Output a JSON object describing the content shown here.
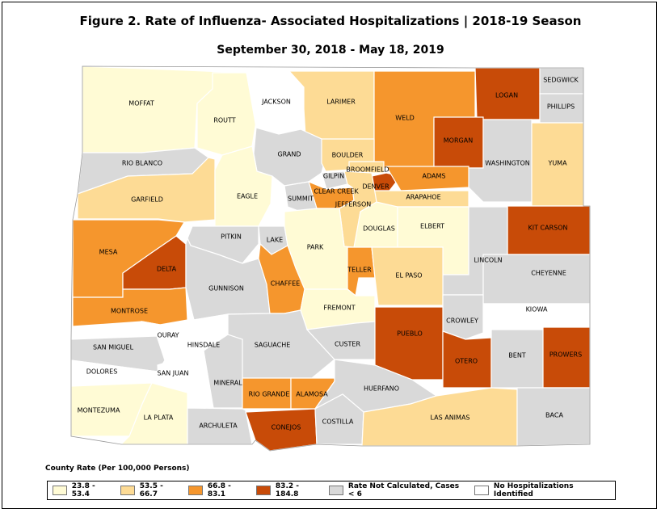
{
  "figure": {
    "title": "Figure 2. Rate of Influenza- Associated Hospitalizations | 2018-19 Season",
    "subtitle": "September 30, 2018 - May 18, 2019"
  },
  "colors": {
    "cat1": "#fffbd5",
    "cat2": "#fddb95",
    "cat3": "#f5962d",
    "cat4": "#c84b08",
    "cat5": "#d9d9d9",
    "cat6": "#ffffff"
  },
  "legend": {
    "title": "County Rate (Per 100,000 Persons)",
    "items": [
      {
        "label": "23.8 - 53.4",
        "color": "#fffbd5"
      },
      {
        "label": "53.5 - 66.7",
        "color": "#fddb95"
      },
      {
        "label": "66.8 - 83.1",
        "color": "#f5962d"
      },
      {
        "label": "83.2 - 184.8",
        "color": "#c84b08"
      },
      {
        "label": "Rate Not Calculated, Cases < 6",
        "color": "#d9d9d9"
      },
      {
        "label": "No Hospitalizations Identified",
        "color": "#ffffff"
      }
    ]
  },
  "counties": [
    {
      "name": "MOFFAT",
      "category": 1
    },
    {
      "name": "ROUTT",
      "category": 1
    },
    {
      "name": "JACKSON",
      "category": 6
    },
    {
      "name": "LARIMER",
      "category": 2
    },
    {
      "name": "WELD",
      "category": 3
    },
    {
      "name": "LOGAN",
      "category": 4
    },
    {
      "name": "SEDGWICK",
      "category": 5
    },
    {
      "name": "PHILLIPS",
      "category": 5
    },
    {
      "name": "RIO BLANCO",
      "category": 5
    },
    {
      "name": "GRAND",
      "category": 5
    },
    {
      "name": "BOULDER",
      "category": 2
    },
    {
      "name": "MORGAN",
      "category": 4
    },
    {
      "name": "WASHINGTON",
      "category": 5
    },
    {
      "name": "YUMA",
      "category": 2
    },
    {
      "name": "GARFIELD",
      "category": 2
    },
    {
      "name": "EAGLE",
      "category": 1
    },
    {
      "name": "GILPIN",
      "category": 5
    },
    {
      "name": "CLEAR CREEK",
      "category": 3
    },
    {
      "name": "BROOMFIELD",
      "category": 2
    },
    {
      "name": "DENVER",
      "category": 4
    },
    {
      "name": "ADAMS",
      "category": 3
    },
    {
      "name": "ARAPAHOE",
      "category": 2
    },
    {
      "name": "JEFFERSON",
      "category": 2
    },
    {
      "name": "SUMMIT",
      "category": 5
    },
    {
      "name": "DOUGLAS",
      "category": 1
    },
    {
      "name": "ELBERT",
      "category": 1
    },
    {
      "name": "KIT CARSON",
      "category": 4
    },
    {
      "name": "MESA",
      "category": 3
    },
    {
      "name": "PITKIN",
      "category": 5
    },
    {
      "name": "LAKE",
      "category": 5
    },
    {
      "name": "PARK",
      "category": 1
    },
    {
      "name": "LINCOLN",
      "category": 5
    },
    {
      "name": "DELTA",
      "category": 4
    },
    {
      "name": "TELLER",
      "category": 3
    },
    {
      "name": "EL PASO",
      "category": 2
    },
    {
      "name": "CHEYENNE",
      "category": 5
    },
    {
      "name": "GUNNISON",
      "category": 5
    },
    {
      "name": "CHAFFEE",
      "category": 3
    },
    {
      "name": "MONTROSE",
      "category": 3
    },
    {
      "name": "FREMONT",
      "category": 1
    },
    {
      "name": "KIOWA",
      "category": 6
    },
    {
      "name": "OURAY",
      "category": 6
    },
    {
      "name": "CROWLEY",
      "category": 5
    },
    {
      "name": "SAN MIGUEL",
      "category": 5
    },
    {
      "name": "HINSDALE",
      "category": 6
    },
    {
      "name": "SAGUACHE",
      "category": 5
    },
    {
      "name": "CUSTER",
      "category": 5
    },
    {
      "name": "PUEBLO",
      "category": 4
    },
    {
      "name": "OTERO",
      "category": 4
    },
    {
      "name": "BENT",
      "category": 5
    },
    {
      "name": "PROWERS",
      "category": 4
    },
    {
      "name": "DOLORES",
      "category": 6
    },
    {
      "name": "SAN JUAN",
      "category": 6
    },
    {
      "name": "MINERAL",
      "category": 5
    },
    {
      "name": "RIO GRANDE",
      "category": 3
    },
    {
      "name": "ALAMOSA",
      "category": 3
    },
    {
      "name": "HUERFANO",
      "category": 5
    },
    {
      "name": "MONTEZUMA",
      "category": 1
    },
    {
      "name": "LA PLATA",
      "category": 1
    },
    {
      "name": "ARCHULETA",
      "category": 5
    },
    {
      "name": "CONEJOS",
      "category": 4
    },
    {
      "name": "COSTILLA",
      "category": 5
    },
    {
      "name": "LAS ANIMAS",
      "category": 2
    },
    {
      "name": "BACA",
      "category": 5
    }
  ]
}
